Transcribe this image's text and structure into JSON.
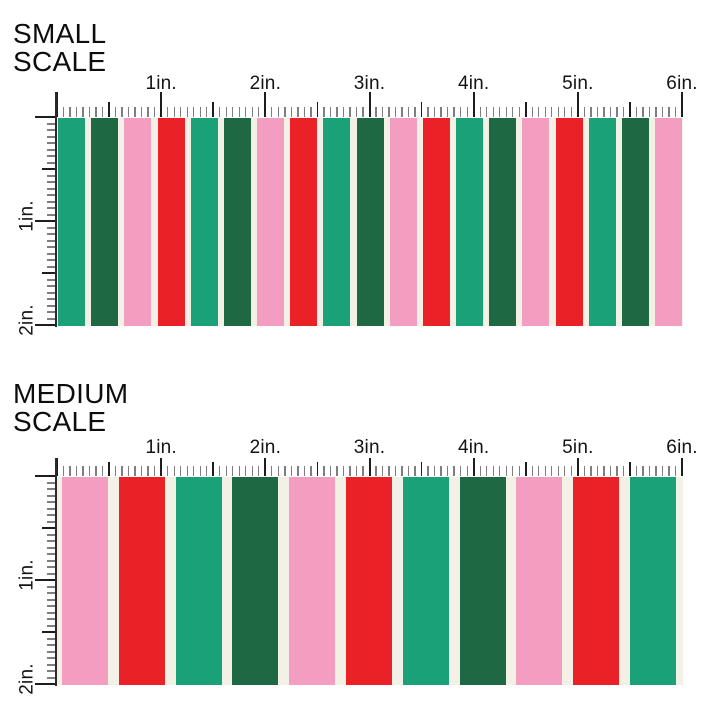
{
  "canvas": {
    "background": "#ffffff"
  },
  "palette": {
    "green": "#1BA178",
    "dark_green": "#1E6943",
    "pink": "#F39EC0",
    "red": "#EA2127",
    "cream": "#F3F1E6",
    "tick_minor": "#7E7E7E",
    "tick_major": "#1D1D1D",
    "ruler_line": "#2A2A2A",
    "text": "#0D0D0D"
  },
  "ruler": {
    "top_labels": [
      "1in.",
      "2in.",
      "3in.",
      "4in.",
      "5in.",
      "6in."
    ],
    "side_labels": [
      "1in.",
      "2in."
    ]
  },
  "sections": [
    {
      "id": "small-scale",
      "title_line1": "SMALL",
      "title_line2": "SCALE",
      "stripes": [
        "green",
        "dark_green",
        "pink",
        "red",
        "green",
        "dark_green",
        "pink",
        "red",
        "green",
        "dark_green",
        "pink",
        "red",
        "green",
        "dark_green",
        "pink",
        "red",
        "green",
        "dark_green",
        "pink"
      ]
    },
    {
      "id": "medium-scale",
      "title_line1": "MEDIUM",
      "title_line2": "SCALE",
      "stripes": [
        "pink",
        "red",
        "green",
        "dark_green",
        "pink",
        "red",
        "green",
        "dark_green",
        "pink",
        "red",
        "green"
      ]
    }
  ]
}
